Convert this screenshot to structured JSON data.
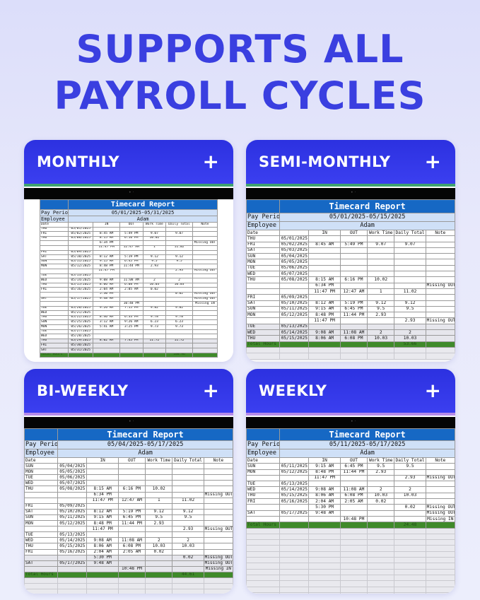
{
  "headline": {
    "line1": "SUPPORTS ALL",
    "line2": "PAYROLL CYCLES"
  },
  "colors": {
    "brand_blue": "#3a3fe0",
    "card_header": "#2c31e0",
    "report_header": "#1668c4",
    "total_row": "#3f8a2a",
    "stripe_green": "#3fa370",
    "stripe_purple": "#b58be8"
  },
  "columns": [
    "Date",
    "",
    "IN",
    "OUT",
    "Work Time",
    "Daily Total",
    "Note"
  ],
  "labels": {
    "report_title": "Timecard Report",
    "pay_period": "Pay Period",
    "employee": "Employee",
    "employee_name": "Adam",
    "total_hours": "Total Hours",
    "plus_icon": "plus-icon"
  },
  "cards": [
    {
      "id": "monthly",
      "title": "MONTHLY",
      "period": "05/01/2025-05/31/2025",
      "total": "100.96",
      "rows": [
        [
          "THU",
          "05/01/2025",
          "",
          "",
          "",
          "",
          ""
        ],
        [
          "FRI",
          "05/02/2025",
          "8:45 AM",
          "5:49 PM",
          "9.07",
          "9.07",
          ""
        ],
        [
          "THU",
          "05/08/2025",
          "8:15 AM",
          "6:16 PM",
          "10.02",
          "",
          ""
        ],
        [
          "",
          "",
          "6:34 PM",
          "",
          "",
          "",
          "Missing OUT"
        ],
        [
          "",
          "",
          "11:47 PM",
          "12:47 AM",
          "1",
          "11.02",
          ""
        ],
        [
          "FRI",
          "05/09/2025",
          "",
          "",
          "",
          "",
          ""
        ],
        [
          "SAT",
          "05/10/2025",
          "8:12 AM",
          "5:19 PM",
          "9.12",
          "9.12",
          ""
        ],
        [
          "SUN",
          "05/11/2025",
          "9:15 AM",
          "6:45 PM",
          "9.5",
          "9.5",
          ""
        ],
        [
          "MON",
          "05/12/2025",
          "8:48 PM",
          "11:44 PM",
          "2.93",
          "",
          ""
        ],
        [
          "",
          "",
          "11:47 PM",
          "",
          "",
          "2.93",
          "Missing OUT"
        ],
        [
          "TUE",
          "05/13/2025",
          "",
          "",
          "",
          "",
          ""
        ],
        [
          "WED",
          "05/14/2025",
          "9:08 AM",
          "11:08 AM",
          "2",
          "2",
          ""
        ],
        [
          "THU",
          "05/15/2025",
          "8:06 AM",
          "6:08 PM",
          "10.03",
          "10.03",
          ""
        ],
        [
          "FRI",
          "05/16/2025",
          "2:04 AM",
          "2:05 AM",
          "0.02",
          "",
          ""
        ],
        [
          "",
          "",
          "5:30 PM",
          "",
          "",
          "0.02",
          "Missing OUT"
        ],
        [
          "SAT",
          "05/17/2025",
          "9:48 AM",
          "",
          "",
          "",
          "Missing OUT"
        ],
        [
          "",
          "",
          "",
          "10:48 PM",
          "",
          "",
          "Missing IN"
        ],
        [
          "TUE",
          "05/20/2025",
          "9:26 AM",
          "7:15 PM",
          "9.82",
          "9.82",
          ""
        ],
        [
          "WED",
          "05/21/2025",
          "",
          "",
          "",
          "",
          ""
        ],
        [
          "THU",
          "05/22/2025",
          "8:46 AM",
          "6:33 PM",
          "9.78",
          "9.78",
          ""
        ],
        [
          "SUN",
          "05/25/2025",
          "3:12 AM",
          "9:26 AM",
          "6.23",
          "6.23",
          ""
        ],
        [
          "MON",
          "05/26/2025",
          "5:41 AM",
          "3:25 PM",
          "9.73",
          "9.73",
          ""
        ],
        [
          "TUE",
          "05/27/2025",
          "",
          "",
          "",
          "",
          ""
        ],
        [
          "WED",
          "05/28/2025",
          "",
          "",
          "",
          "",
          ""
        ],
        [
          "THU",
          "05/29/2025",
          "8:02 AM",
          "7:45 PM",
          "11.72",
          "11.72",
          ""
        ],
        [
          "FRI",
          "05/30/2025",
          "",
          "",
          "",
          "",
          ""
        ],
        [
          "SAT",
          "05/31/2025",
          "",
          "",
          "",
          "",
          ""
        ]
      ]
    },
    {
      "id": "semi-monthly",
      "title": "SEMI-MONTHLY",
      "period": "05/01/2025-05/15/2025",
      "total": "53.66",
      "rows": [
        [
          "THU",
          "05/01/2025",
          "",
          "",
          "",
          "",
          ""
        ],
        [
          "FRI",
          "05/02/2025",
          "8:45 AM",
          "5:49 PM",
          "9.07",
          "9.07",
          ""
        ],
        [
          "SAT",
          "05/03/2025",
          "",
          "",
          "",
          "",
          ""
        ],
        [
          "SUN",
          "05/04/2025",
          "",
          "",
          "",
          "",
          ""
        ],
        [
          "MON",
          "05/05/2025",
          "",
          "",
          "",
          "",
          ""
        ],
        [
          "TUE",
          "05/06/2025",
          "",
          "",
          "",
          "",
          ""
        ],
        [
          "WED",
          "05/07/2025",
          "",
          "",
          "",
          "",
          ""
        ],
        [
          "THU",
          "05/08/2025",
          "8:15 AM",
          "6:16 PM",
          "10.02",
          "",
          ""
        ],
        [
          "",
          "",
          "6:34 PM",
          "",
          "",
          "",
          "Missing OUT"
        ],
        [
          "",
          "",
          "11:47 PM",
          "12:47 AM",
          "1",
          "11.02",
          ""
        ],
        [
          "FRI",
          "05/09/2025",
          "",
          "",
          "",
          "",
          ""
        ],
        [
          "SAT",
          "05/10/2025",
          "8:12 AM",
          "5:19 PM",
          "9.12",
          "9.12",
          ""
        ],
        [
          "SUN",
          "05/11/2025",
          "9:15 AM",
          "6:45 PM",
          "9.5",
          "9.5",
          ""
        ],
        [
          "MON",
          "05/12/2025",
          "8:48 PM",
          "11:44 PM",
          "2.93",
          "",
          ""
        ],
        [
          "",
          "",
          "11:47 PM",
          "",
          "",
          "2.93",
          "Missing OUT"
        ],
        [
          "TUE",
          "05/13/2025",
          "",
          "",
          "",
          "",
          ""
        ],
        [
          "WED",
          "05/14/2025",
          "9:08 AM",
          "11:08 AM",
          "2",
          "2",
          ""
        ],
        [
          "THU",
          "05/15/2025",
          "8:06 AM",
          "6:08 PM",
          "10.03",
          "10.03",
          ""
        ]
      ]
    },
    {
      "id": "bi-weekly",
      "title": "BI-WEEKLY",
      "period": "05/04/2025-05/17/2025",
      "total": "44.61",
      "rows": [
        [
          "SUN",
          "05/04/2025",
          "",
          "",
          "",
          "",
          ""
        ],
        [
          "MON",
          "05/05/2025",
          "",
          "",
          "",
          "",
          ""
        ],
        [
          "TUE",
          "05/06/2025",
          "",
          "",
          "",
          "",
          ""
        ],
        [
          "WED",
          "05/07/2025",
          "",
          "",
          "",
          "",
          ""
        ],
        [
          "THU",
          "05/08/2025",
          "8:15 AM",
          "6:16 PM",
          "10.02",
          "",
          ""
        ],
        [
          "",
          "",
          "6:34 PM",
          "",
          "",
          "",
          "Missing OUT"
        ],
        [
          "",
          "",
          "11:47 PM",
          "12:47 AM",
          "1",
          "11.02",
          ""
        ],
        [
          "FRI",
          "05/09/2025",
          "",
          "",
          "",
          "",
          ""
        ],
        [
          "SAT",
          "05/10/2025",
          "8:12 AM",
          "5:19 PM",
          "9.12",
          "9.12",
          ""
        ],
        [
          "SUN",
          "05/11/2025",
          "9:15 AM",
          "6:45 PM",
          "9.5",
          "9.5",
          ""
        ],
        [
          "MON",
          "05/12/2025",
          "8:48 PM",
          "11:44 PM",
          "2.93",
          "",
          ""
        ],
        [
          "",
          "",
          "11:47 PM",
          "",
          "",
          "2.93",
          "Missing OUT"
        ],
        [
          "TUE",
          "05/13/2025",
          "",
          "",
          "",
          "",
          ""
        ],
        [
          "WED",
          "05/14/2025",
          "9:08 AM",
          "11:08 AM",
          "2",
          "2",
          ""
        ],
        [
          "THU",
          "05/15/2025",
          "8:06 AM",
          "6:08 PM",
          "10.03",
          "10.03",
          ""
        ],
        [
          "FRI",
          "05/16/2025",
          "2:04 AM",
          "2:05 AM",
          "0.02",
          "",
          ""
        ],
        [
          "",
          "",
          "5:30 PM",
          "",
          "",
          "0.02",
          "Missing OUT"
        ],
        [
          "SAT",
          "05/17/2025",
          "9:48 AM",
          "",
          "",
          "",
          "Missing OUT"
        ],
        [
          "",
          "",
          "",
          "10:48 PM",
          "",
          "",
          "Missing IN"
        ]
      ]
    },
    {
      "id": "weekly",
      "title": "WEEKLY",
      "period": "05/11/2025-05/17/2025",
      "total": "24.48",
      "rows": [
        [
          "SUN",
          "05/11/2025",
          "9:15 AM",
          "6:45 PM",
          "9.5",
          "9.5",
          ""
        ],
        [
          "MON",
          "05/12/2025",
          "8:48 PM",
          "11:44 PM",
          "2.93",
          "",
          ""
        ],
        [
          "",
          "",
          "11:47 PM",
          "",
          "",
          "2.93",
          "Missing OUT"
        ],
        [
          "TUE",
          "05/13/2025",
          "",
          "",
          "",
          "",
          ""
        ],
        [
          "WED",
          "05/14/2025",
          "9:08 AM",
          "11:08 AM",
          "2",
          "2",
          ""
        ],
        [
          "THU",
          "05/15/2025",
          "8:06 AM",
          "6:08 PM",
          "10.03",
          "10.03",
          ""
        ],
        [
          "FRI",
          "05/16/2025",
          "2:04 AM",
          "2:05 AM",
          "0.02",
          "",
          ""
        ],
        [
          "",
          "",
          "5:30 PM",
          "",
          "",
          "0.02",
          "Missing OUT"
        ],
        [
          "SAT",
          "05/17/2025",
          "9:48 AM",
          "",
          "",
          "",
          "Missing OUT"
        ],
        [
          "",
          "",
          "",
          "10:48 PM",
          "",
          "",
          "Missing IN"
        ]
      ]
    }
  ]
}
